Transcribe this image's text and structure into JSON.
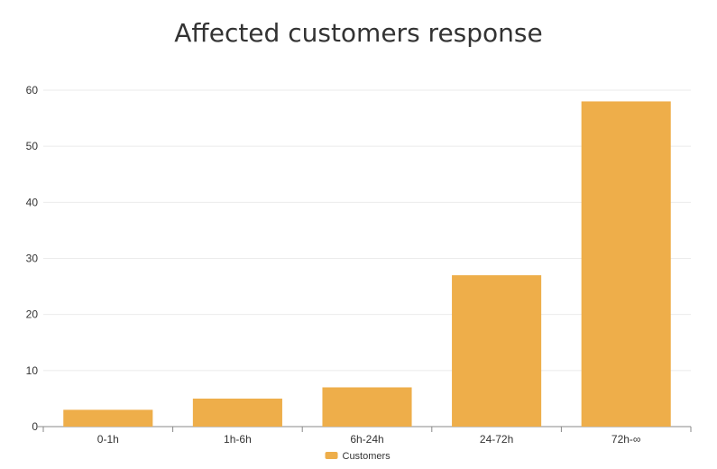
{
  "chart_data": {
    "type": "bar",
    "title": "Affected customers response",
    "xlabel": "",
    "ylabel": "",
    "categories": [
      "0-1h",
      "1h-6h",
      "6h-24h",
      "24-72h",
      "72h-∞"
    ],
    "series": [
      {
        "name": "Customers",
        "values": [
          3,
          5,
          7,
          27,
          58
        ],
        "color": "#eeae4a"
      }
    ],
    "ylim": [
      0,
      60
    ],
    "yticks": [
      0,
      10,
      20,
      30,
      40,
      50,
      60
    ],
    "grid": true,
    "legend": "bottom-center"
  }
}
